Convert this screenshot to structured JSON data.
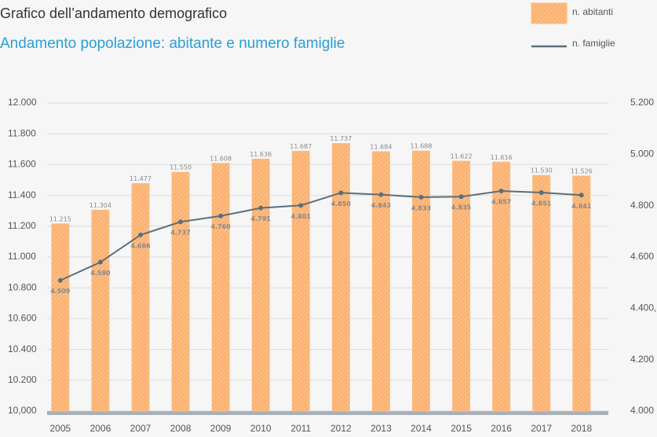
{
  "chart_data": {
    "type": "bar-line",
    "title": "Grafico dell’andamento demografico",
    "subtitle": "Andamento popolazione: abitante e numero famiglie",
    "categories": [
      "2005",
      "2006",
      "2007",
      "2008",
      "2009",
      "2010",
      "2011",
      "2012",
      "2013",
      "2014",
      "2015",
      "2016",
      "2017",
      "2018"
    ],
    "series": [
      {
        "name": "n. abitanti",
        "type": "bar",
        "color": "#fdbb80",
        "values": [
          11215,
          11304,
          11477,
          11550,
          11608,
          11636,
          11687,
          11737,
          11684,
          11688,
          11622,
          11616,
          11530,
          11526
        ],
        "value_labels": [
          "11.215",
          "11.304",
          "11.477",
          "11.550",
          "11.608",
          "11.636",
          "11.687",
          "11.737",
          "11.684",
          "11.688",
          "11.622",
          "11.616",
          "11.530",
          "11.526"
        ]
      },
      {
        "name": "n. famiglie",
        "type": "line",
        "axis": "y2",
        "color": "#5b6f7b",
        "values": [
          4509,
          4580,
          4686,
          4737,
          4760,
          4791,
          4801,
          4850,
          4843,
          4833,
          4835,
          4857,
          4851,
          4841
        ],
        "value_labels": [
          "4.509",
          "4.580",
          "4.686",
          "4.737",
          "4.760",
          "4.791",
          "4.801",
          "4.850",
          "4.843",
          "4.833",
          "4.835",
          "4.857",
          "4.851",
          "4.841"
        ]
      }
    ],
    "ylim": [
      10000,
      12000
    ],
    "yticks": [
      {
        "value": 10000,
        "label": "10,000"
      },
      {
        "value": 10200,
        "label": "10.200"
      },
      {
        "value": 10400,
        "label": "10.400"
      },
      {
        "value": 10600,
        "label": "10.600"
      },
      {
        "value": 10800,
        "label": "10.800"
      },
      {
        "value": 11000,
        "label": "11.000"
      },
      {
        "value": 11200,
        "label": "11.200"
      },
      {
        "value": 11400,
        "label": "11.400"
      },
      {
        "value": 11600,
        "label": "11.600"
      },
      {
        "value": 11800,
        "label": "11.800"
      },
      {
        "value": 12000,
        "label": "12.000"
      }
    ],
    "y2lim": [
      4000,
      5200
    ],
    "y2ticks": [
      {
        "value": 4000,
        "label": "4.000"
      },
      {
        "value": 4200,
        "label": "4.200"
      },
      {
        "value": 4400,
        "label": "4.400,"
      },
      {
        "value": 4600,
        "label": "4.600"
      },
      {
        "value": 4800,
        "label": "4.800"
      },
      {
        "value": 5000,
        "label": "5.000"
      },
      {
        "value": 5200,
        "label": "5.200"
      }
    ],
    "grid": true,
    "legend": "top-right"
  }
}
